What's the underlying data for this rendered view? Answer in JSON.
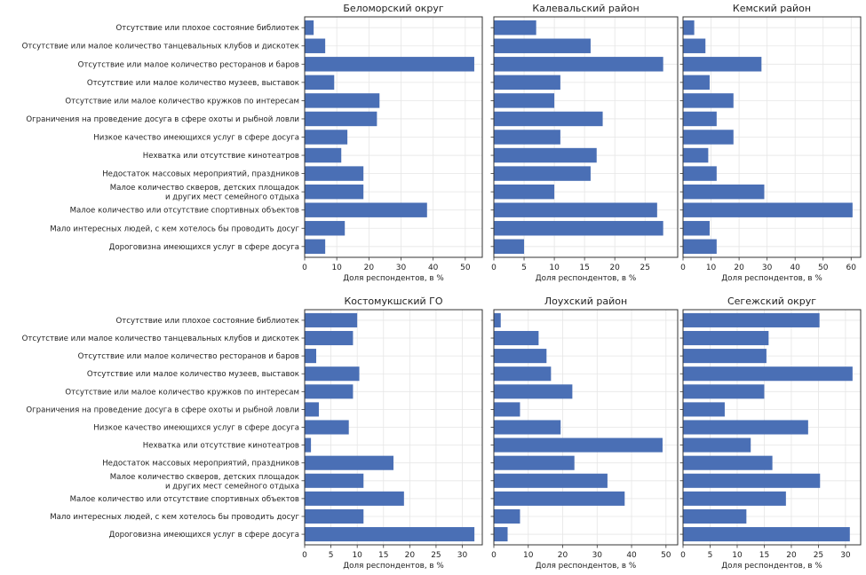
{
  "figure": {
    "bar_color": "#4a6fb5",
    "grid_color": "#e6e6e6",
    "frame_color": "#333333"
  },
  "chart_data": [
    {
      "type": "bar",
      "orientation": "horizontal",
      "title": "Беломорский округ",
      "xlabel": "Доля респондентов, в %",
      "xlim": [
        0,
        55.3
      ],
      "xticks": [
        0,
        10,
        20,
        30,
        40,
        50
      ],
      "grid": true,
      "show_category_labels": true,
      "categories": [
        "Отсутствие или плохое состояние библиотек",
        "Отсутствие или малое количество танцевальных клубов и дискотек",
        "Отсутствие или малое количество ресторанов и баров",
        "Отсутствие или малое количество музеев, выставок",
        "Отсутствие или малое количество кружков по интересам",
        "Ограничения на проведение досуга в сфере охоты и рыбной ловли",
        "Низкое качество имеющихся услуг в сфере досуга",
        "Нехватка или отсутствие кинотеатров",
        "Недостаток массовых мероприятий, праздников",
        "Малое количество скверов, детских площадок\nи других мест семейного отдыха",
        "Малое количество или отсутствие спортивных объектов",
        "Мало интересных людей, с кем хотелось бы проводить досуг",
        "Дороговизна имеющихся услуг в сфере досуга"
      ],
      "values": [
        2.8,
        6.4,
        52.8,
        9.2,
        23.3,
        22.5,
        13.3,
        11.4,
        18.3,
        18.3,
        38.1,
        12.5,
        6.4
      ]
    },
    {
      "type": "bar",
      "orientation": "horizontal",
      "title": "Калевальский район",
      "xlabel": "Доля респондентов, в %",
      "xlim": [
        0,
        30.4
      ],
      "xticks": [
        0,
        5,
        10,
        15,
        20,
        25
      ],
      "grid": true,
      "show_category_labels": false,
      "categories": [
        "Отсутствие или плохое состояние библиотек",
        "Отсутствие или малое количество танцевальных клубов и дискотек",
        "Отсутствие или малое количество ресторанов и баров",
        "Отсутствие или малое количество музеев, выставок",
        "Отсутствие или малое количество кружков по интересам",
        "Ограничения на проведение досуга в сфере охоты и рыбной ловли",
        "Низкое качество имеющихся услуг в сфере досуга",
        "Нехватка или отсутствие кинотеатров",
        "Недостаток массовых мероприятий, праздников",
        "Малое количество скверов, детских площадок\nи других мест семейного отдыха",
        "Малое количество или отсутствие спортивных объектов",
        "Мало интересных людей, с кем хотелось бы проводить досуг",
        "Дороговизна имеющихся услуг в сфере досуга"
      ],
      "values": [
        7,
        16,
        28,
        11,
        10,
        18,
        11,
        17,
        16,
        10,
        27,
        28,
        5
      ]
    },
    {
      "type": "bar",
      "orientation": "horizontal",
      "title": "Кемский район",
      "xlabel": "Доля респондентов, в %",
      "xlim": [
        0,
        63.4
      ],
      "xticks": [
        0,
        10,
        20,
        30,
        40,
        50,
        60
      ],
      "grid": true,
      "show_category_labels": false,
      "categories": [
        "Отсутствие или плохое состояние библиотек",
        "Отсутствие или малое количество танцевальных клубов и дискотек",
        "Отсутствие или малое количество ресторанов и баров",
        "Отсутствие или малое количество музеев, выставок",
        "Отсутствие или малое количество кружков по интересам",
        "Ограничения на проведение досуга в сфере охоты и рыбной ловли",
        "Низкое качество имеющихся услуг в сфере досуга",
        "Нехватка или отсутствие кинотеатров",
        "Недостаток массовых мероприятий, праздников",
        "Малое количество скверов, детских площадок\nи других мест семейного отдыха",
        "Малое количество или отсутствие спортивных объектов",
        "Мало интересных людей, с кем хотелось бы проводить досуг",
        "Дороговизна имеющихся услуг в сфере досуга"
      ],
      "values": [
        4,
        8,
        28,
        9.5,
        18,
        12,
        18,
        9,
        12,
        29,
        60.5,
        9.5,
        12
      ]
    },
    {
      "type": "bar",
      "orientation": "horizontal",
      "title": "Костомукшский ГО",
      "xlabel": "Доля респондентов, в %",
      "xlim": [
        0,
        33.8
      ],
      "xticks": [
        0,
        5,
        10,
        15,
        20,
        25,
        30
      ],
      "grid": true,
      "show_category_labels": true,
      "categories": [
        "Отсутствие или плохое состояние библиотек",
        "Отсутствие или малое количество танцевальных клубов и дискотек",
        "Отсутствие или малое количество ресторанов и баров",
        "Отсутствие или малое количество музеев, выставок",
        "Отсутствие или малое количество кружков по интересам",
        "Ограничения на проведение досуга в сфере охоты и рыбной ловли",
        "Низкое качество имеющихся услуг в сфере досуга",
        "Нехватка или отсутствие кинотеатров",
        "Недостаток массовых мероприятий, праздников",
        "Малое количество скверов, детских площадок\nи других мест семейного отдыха",
        "Малое количество или отсутствие спортивных объектов",
        "Мало интересных людей, с кем хотелось бы проводить досуг",
        "Дороговизна имеющихся услуг в сфере досуга"
      ],
      "values": [
        10,
        9.2,
        2.2,
        10.4,
        9.2,
        2.7,
        8.4,
        1.2,
        16.9,
        11.2,
        18.9,
        11.2,
        32.3
      ]
    },
    {
      "type": "bar",
      "orientation": "horizontal",
      "title": "Лоухский район",
      "xlabel": "Доля респондентов, в %",
      "xlim": [
        0,
        53.4
      ],
      "xticks": [
        0,
        10,
        20,
        30,
        40,
        50
      ],
      "grid": true,
      "show_category_labels": false,
      "categories": [
        "Отсутствие или плохое состояние библиотек",
        "Отсутствие или малое количество танцевальных клубов и дискотек",
        "Отсутствие или малое количество ресторанов и баров",
        "Отсутствие или малое количество музеев, выставок",
        "Отсутствие или малое количество кружков по интересам",
        "Ограничения на проведение досуга в сфере охоты и рыбной ловли",
        "Низкое качество имеющихся услуг в сфере досуга",
        "Нехватка или отсутствие кинотеатров",
        "Недостаток массовых мероприятий, праздников",
        "Малое количество скверов, детских площадок\nи других мест семейного отдыха",
        "Малое количество или отсутствие спортивных объектов",
        "Мало интересных людей, с кем хотелось бы проводить досуг",
        "Дороговизна имеющихся услуг в сфере досуга"
      ],
      "values": [
        2,
        13,
        15.3,
        16.6,
        22.8,
        7.6,
        19.4,
        49,
        23.4,
        33,
        38,
        7.6,
        4
      ]
    },
    {
      "type": "bar",
      "orientation": "horizontal",
      "title": "Сегежский округ",
      "xlabel": "Доля респондентов, в %",
      "xlim": [
        0,
        32.8
      ],
      "xticks": [
        0,
        5,
        10,
        15,
        20,
        25,
        30
      ],
      "grid": true,
      "show_category_labels": false,
      "categories": [
        "Отсутствие или плохое состояние библиотек",
        "Отсутствие или малое количество танцевальных клубов и дискотек",
        "Отсутствие или малое количество ресторанов и баров",
        "Отсутствие или малое количество музеев, выставок",
        "Отсутствие или малое количество кружков по интересам",
        "Ограничения на проведение досуга в сфере охоты и рыбной ловли",
        "Низкое качество имеющихся услуг в сфере досуга",
        "Нехватка или отсутствие кинотеатров",
        "Недостаток массовых мероприятий, праздников",
        "Малое количество скверов, детских площадок\nи других мест семейного отдыха",
        "Малое количество или отсутствие спортивных объектов",
        "Мало интересных людей, с кем хотелось бы проводить досуг",
        "Дороговизна имеющихся услуг в сфере досуга"
      ],
      "values": [
        25.2,
        15.8,
        15.4,
        31.3,
        15,
        7.7,
        23.1,
        12.5,
        16.5,
        25.3,
        19,
        11.7,
        30.8
      ]
    }
  ]
}
